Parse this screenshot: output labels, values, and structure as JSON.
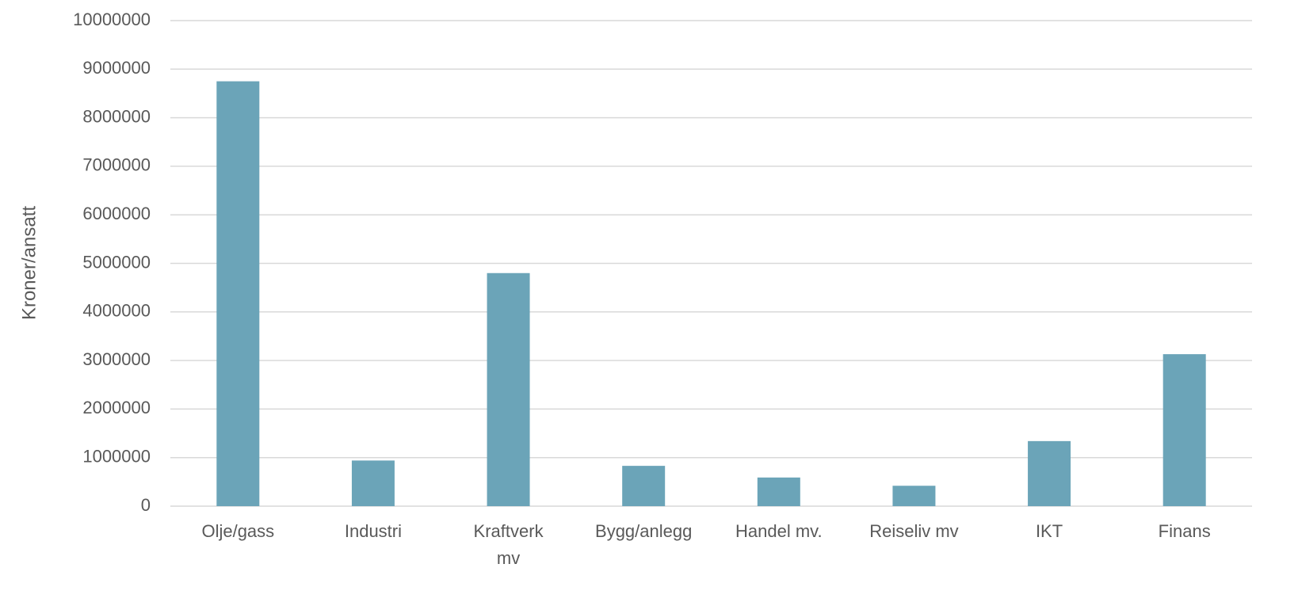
{
  "chart_data": {
    "type": "bar",
    "y_label": "Kroner/ansatt",
    "categories": [
      "Olje/gass",
      "Industri",
      "Kraftverk mv",
      "Bygg/anlegg",
      "Handel mv.",
      "Reiseliv mv",
      "IKT",
      "Finans"
    ],
    "values": [
      8750000,
      940000,
      4800000,
      830000,
      590000,
      420000,
      1340000,
      3130000
    ],
    "color": "#6ba4b8",
    "ylim": [
      0,
      10000000
    ],
    "yticks": [
      0,
      1000000,
      2000000,
      3000000,
      4000000,
      5000000,
      6000000,
      7000000,
      8000000,
      9000000,
      10000000
    ],
    "grid": true
  }
}
